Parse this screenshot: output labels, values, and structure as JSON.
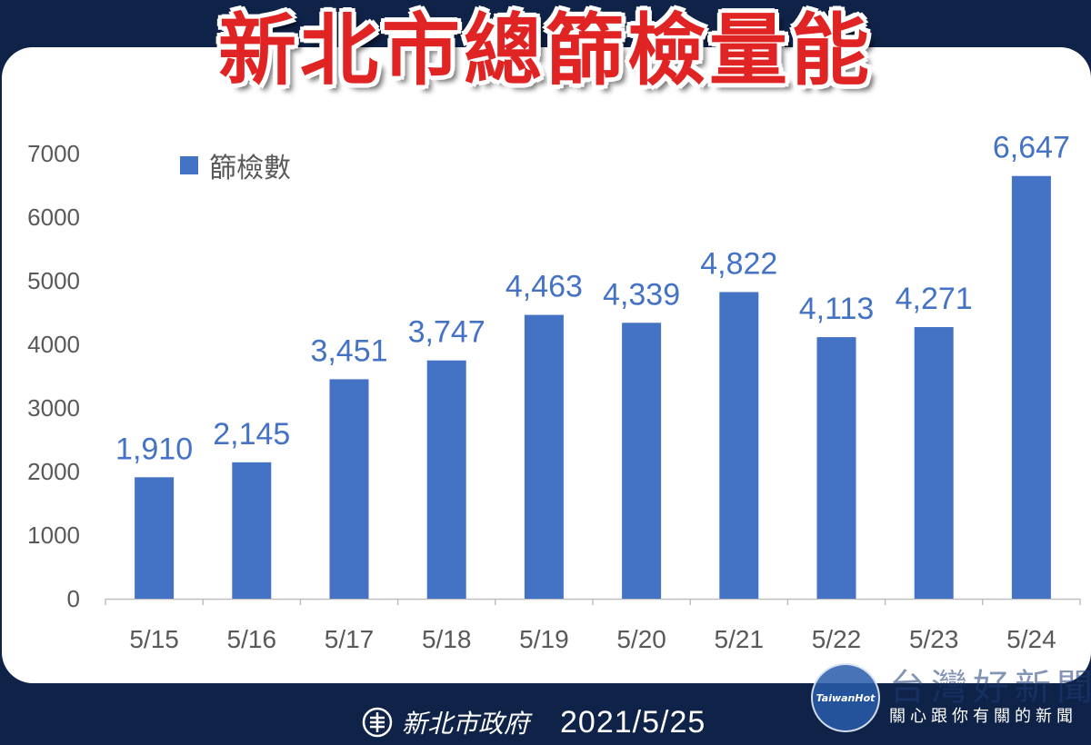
{
  "title": "新北市總篩檢量能",
  "chart_data": {
    "type": "bar",
    "categories": [
      "5/15",
      "5/16",
      "5/17",
      "5/18",
      "5/19",
      "5/20",
      "5/21",
      "5/22",
      "5/23",
      "5/24"
    ],
    "series": [
      {
        "name": "篩檢數",
        "values": [
          1910,
          2145,
          3451,
          3747,
          4463,
          4339,
          4822,
          4113,
          4271,
          6647
        ]
      }
    ],
    "data_labels": [
      "1,910",
      "2,145",
      "3,451",
      "3,747",
      "4,463",
      "4,339",
      "4,822",
      "4,113",
      "4,271",
      "6,647"
    ],
    "ylim": [
      0,
      7000
    ],
    "yticks": [
      "0",
      "1000",
      "2000",
      "3000",
      "4000",
      "5000",
      "6000",
      "7000"
    ],
    "xlabel": "",
    "ylabel": "",
    "grid": false,
    "legend_position": "top-left",
    "bar_color": "#4472c4",
    "label_color": "#4472c4"
  },
  "footer": {
    "organization": "新北市政府",
    "date": "2021/5/25"
  },
  "watermark": {
    "logo_text": "TaiwanHot",
    "name": "台灣好新聞",
    "subtitle": "關心跟你有關的新聞"
  }
}
